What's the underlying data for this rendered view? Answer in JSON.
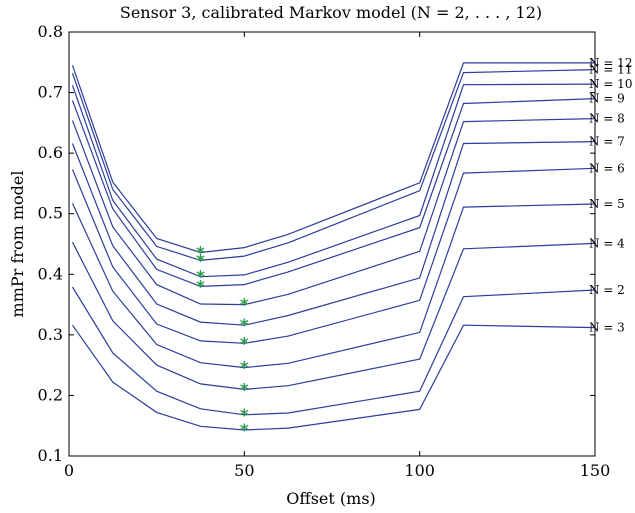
{
  "chart_data": {
    "type": "line",
    "title": "Sensor 3, calibrated Markov model (N = 2, . . . , 12)",
    "xlabel": "Offset (ms)",
    "ylabel": "mmPr from model",
    "xlim": [
      0,
      150
    ],
    "ylim": [
      0.1,
      0.8
    ],
    "x_ticks": [
      0,
      50,
      100,
      150
    ],
    "y_ticks": [
      0.1,
      0.2,
      0.3,
      0.4,
      0.5,
      0.6,
      0.7,
      0.8
    ],
    "x_tick_labels": [
      "0",
      "50",
      "100",
      "150"
    ],
    "y_tick_labels": [
      "0.1",
      "0.2",
      "0.3",
      "0.4",
      "0.5",
      "0.6",
      "0.7",
      "0.8"
    ],
    "grid": false,
    "line_color": "#2b3d9e",
    "marker_color": "#2e9a4e",
    "marker_symbol": "*",
    "x": [
      1,
      12.5,
      25,
      37.5,
      50,
      62.5,
      100,
      112.5,
      150
    ],
    "series": [
      {
        "name": "N = 12",
        "values": [
          0.745,
          0.552,
          0.459,
          0.436,
          0.444,
          0.466,
          0.551,
          0.749,
          0.749
        ],
        "min_x": 37.5
      },
      {
        "name": "N = 11",
        "values": [
          0.732,
          0.54,
          0.446,
          0.423,
          0.43,
          0.452,
          0.538,
          0.733,
          0.738
        ],
        "min_x": 37.5
      },
      {
        "name": "N = 10",
        "values": [
          0.712,
          0.522,
          0.425,
          0.396,
          0.399,
          0.42,
          0.497,
          0.713,
          0.714
        ],
        "min_x": 37.5
      },
      {
        "name": "N = 9",
        "values": [
          0.687,
          0.508,
          0.408,
          0.38,
          0.383,
          0.404,
          0.477,
          0.682,
          0.69
        ],
        "min_x": 37.5
      },
      {
        "name": "N = 8",
        "values": [
          0.654,
          0.478,
          0.383,
          0.351,
          0.35,
          0.367,
          0.438,
          0.652,
          0.657
        ],
        "min_x": 50
      },
      {
        "name": "N = 7",
        "values": [
          0.616,
          0.447,
          0.351,
          0.321,
          0.316,
          0.332,
          0.394,
          0.616,
          0.619
        ],
        "min_x": 50
      },
      {
        "name": "N = 6",
        "values": [
          0.573,
          0.412,
          0.318,
          0.29,
          0.286,
          0.298,
          0.357,
          0.567,
          0.575
        ],
        "min_x": 50
      },
      {
        "name": "N = 5",
        "values": [
          0.517,
          0.372,
          0.284,
          0.254,
          0.246,
          0.253,
          0.304,
          0.511,
          0.516
        ],
        "min_x": 50
      },
      {
        "name": "N = 4",
        "values": [
          0.453,
          0.323,
          0.25,
          0.219,
          0.21,
          0.216,
          0.26,
          0.442,
          0.451
        ],
        "min_x": 50
      },
      {
        "name": "N = 2",
        "values": [
          0.379,
          0.27,
          0.207,
          0.178,
          0.168,
          0.171,
          0.207,
          0.363,
          0.374
        ],
        "min_x": 50
      },
      {
        "name": "N = 3",
        "values": [
          0.316,
          0.222,
          0.172,
          0.149,
          0.143,
          0.146,
          0.177,
          0.316,
          0.312
        ],
        "min_x": 50
      }
    ]
  }
}
